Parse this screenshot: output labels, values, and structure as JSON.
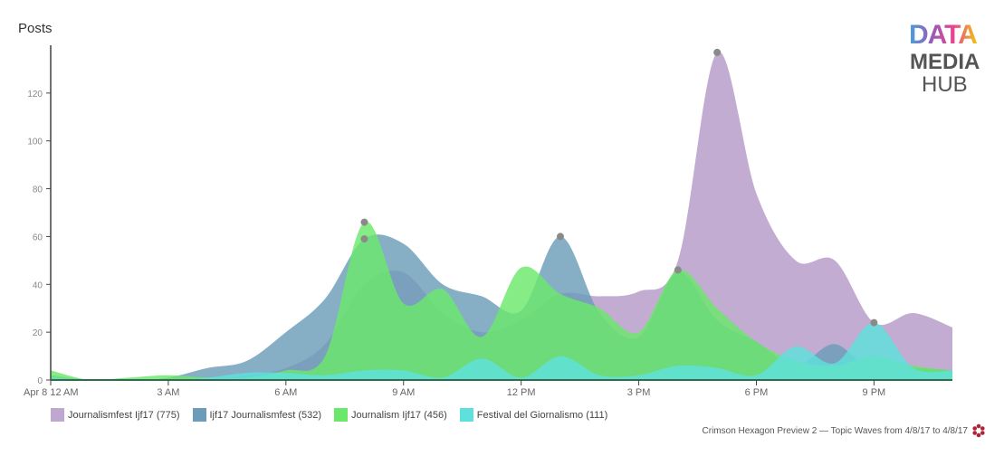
{
  "chart_data": {
    "type": "area",
    "ylabel": "Posts",
    "ylim": [
      0,
      140
    ],
    "yticks": [
      0,
      20,
      40,
      60,
      80,
      100,
      120
    ],
    "xlim": [
      0,
      23
    ],
    "x_ticks": [
      {
        "x": 0,
        "label": "Apr 8 12 AM"
      },
      {
        "x": 3,
        "label": "3 AM"
      },
      {
        "x": 6,
        "label": "6 AM"
      },
      {
        "x": 9,
        "label": "9 AM"
      },
      {
        "x": 12,
        "label": "12 PM"
      },
      {
        "x": 15,
        "label": "3 PM"
      },
      {
        "x": 18,
        "label": "6 PM"
      },
      {
        "x": 21,
        "label": "9 PM"
      }
    ],
    "x_hours": [
      0,
      1,
      2,
      3,
      4,
      5,
      6,
      7,
      8,
      9,
      10,
      11,
      12,
      13,
      14,
      15,
      16,
      17,
      18,
      19,
      20,
      21,
      22,
      23
    ],
    "series": [
      {
        "name": "Journalismfest Ijf17 (775)",
        "color": "#bfa8cf",
        "values": [
          0,
          0,
          0,
          0,
          0,
          2,
          5,
          15,
          40,
          45,
          28,
          20,
          25,
          36,
          35,
          37,
          50,
          137,
          78,
          50,
          50,
          24,
          28,
          22
        ]
      },
      {
        "name": "Ijf17 Journalismfest (532)",
        "color": "#6b9db9",
        "values": [
          2,
          0,
          0,
          1,
          5,
          8,
          20,
          34,
          59,
          57,
          40,
          35,
          29,
          60,
          28,
          18,
          45,
          25,
          16,
          6,
          15,
          3,
          5,
          4
        ]
      },
      {
        "name": "Journalism Ijf17 (456)",
        "color": "#6be86b",
        "values": [
          4,
          0,
          1,
          2,
          1,
          1,
          4,
          10,
          66,
          32,
          38,
          18,
          47,
          36,
          30,
          20,
          46,
          30,
          16,
          8,
          6,
          10,
          6,
          4
        ]
      },
      {
        "name": "Festival del Giornalismo (111)",
        "color": "#5ee0dd",
        "values": [
          1,
          0,
          0,
          0,
          1,
          3,
          3,
          2,
          4,
          4,
          1,
          9,
          1,
          10,
          2,
          2,
          6,
          5,
          2,
          14,
          7,
          24,
          5,
          4
        ]
      }
    ],
    "markers": [
      {
        "x": 8,
        "y": 66
      },
      {
        "x": 8,
        "y": 59
      },
      {
        "x": 13,
        "y": 60
      },
      {
        "x": 16,
        "y": 46
      },
      {
        "x": 17,
        "y": 137
      },
      {
        "x": 21,
        "y": 24
      }
    ]
  },
  "legend": [
    {
      "label": "Journalismfest Ijf17 (775)",
      "color": "#bfa8cf"
    },
    {
      "label": "Ijf17 Journalismfest (532)",
      "color": "#6b9db9"
    },
    {
      "label": "Journalism Ijf17 (456)",
      "color": "#6be86b"
    },
    {
      "label": "Festival del Giornalismo (111)",
      "color": "#5ee0dd"
    }
  ],
  "footer": {
    "text": "Crimson Hexagon Preview 2 — Topic Waves from 4/8/17 to 4/8/17"
  },
  "logo": {
    "line1": "DATA",
    "line2": "MEDIA",
    "line3": "HUB"
  }
}
